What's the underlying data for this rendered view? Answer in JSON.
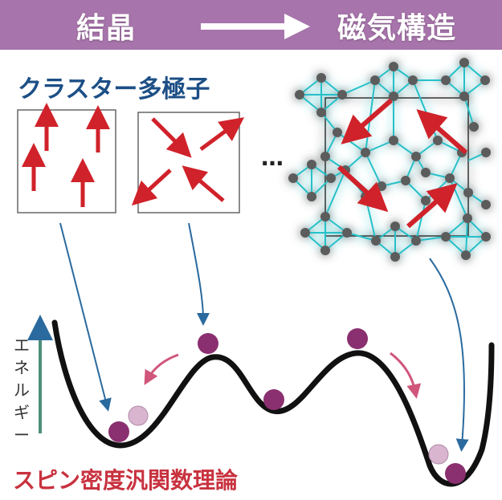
{
  "banner": {
    "left_label": "結晶",
    "right_label": "磁気構造",
    "color": "#a774ab"
  },
  "cluster_multipole_title": "クラスター多極子",
  "ellipsis": "…",
  "energy_axis_label": [
    "エ",
    "ネ",
    "ル",
    "ギ",
    "ー"
  ],
  "method_label": "スピン密度汎関数理論",
  "colors": {
    "arrow_red": "#d0222a",
    "blue_arrow": "#2a6a9e",
    "pink_arrow": "#d0567b",
    "ball": "#8a2f6f",
    "ball_ghost": "#d9b5cf",
    "curve": "#111111",
    "lattice_bond": "#28c0c8",
    "lattice_atom": "#5c5c5c"
  }
}
